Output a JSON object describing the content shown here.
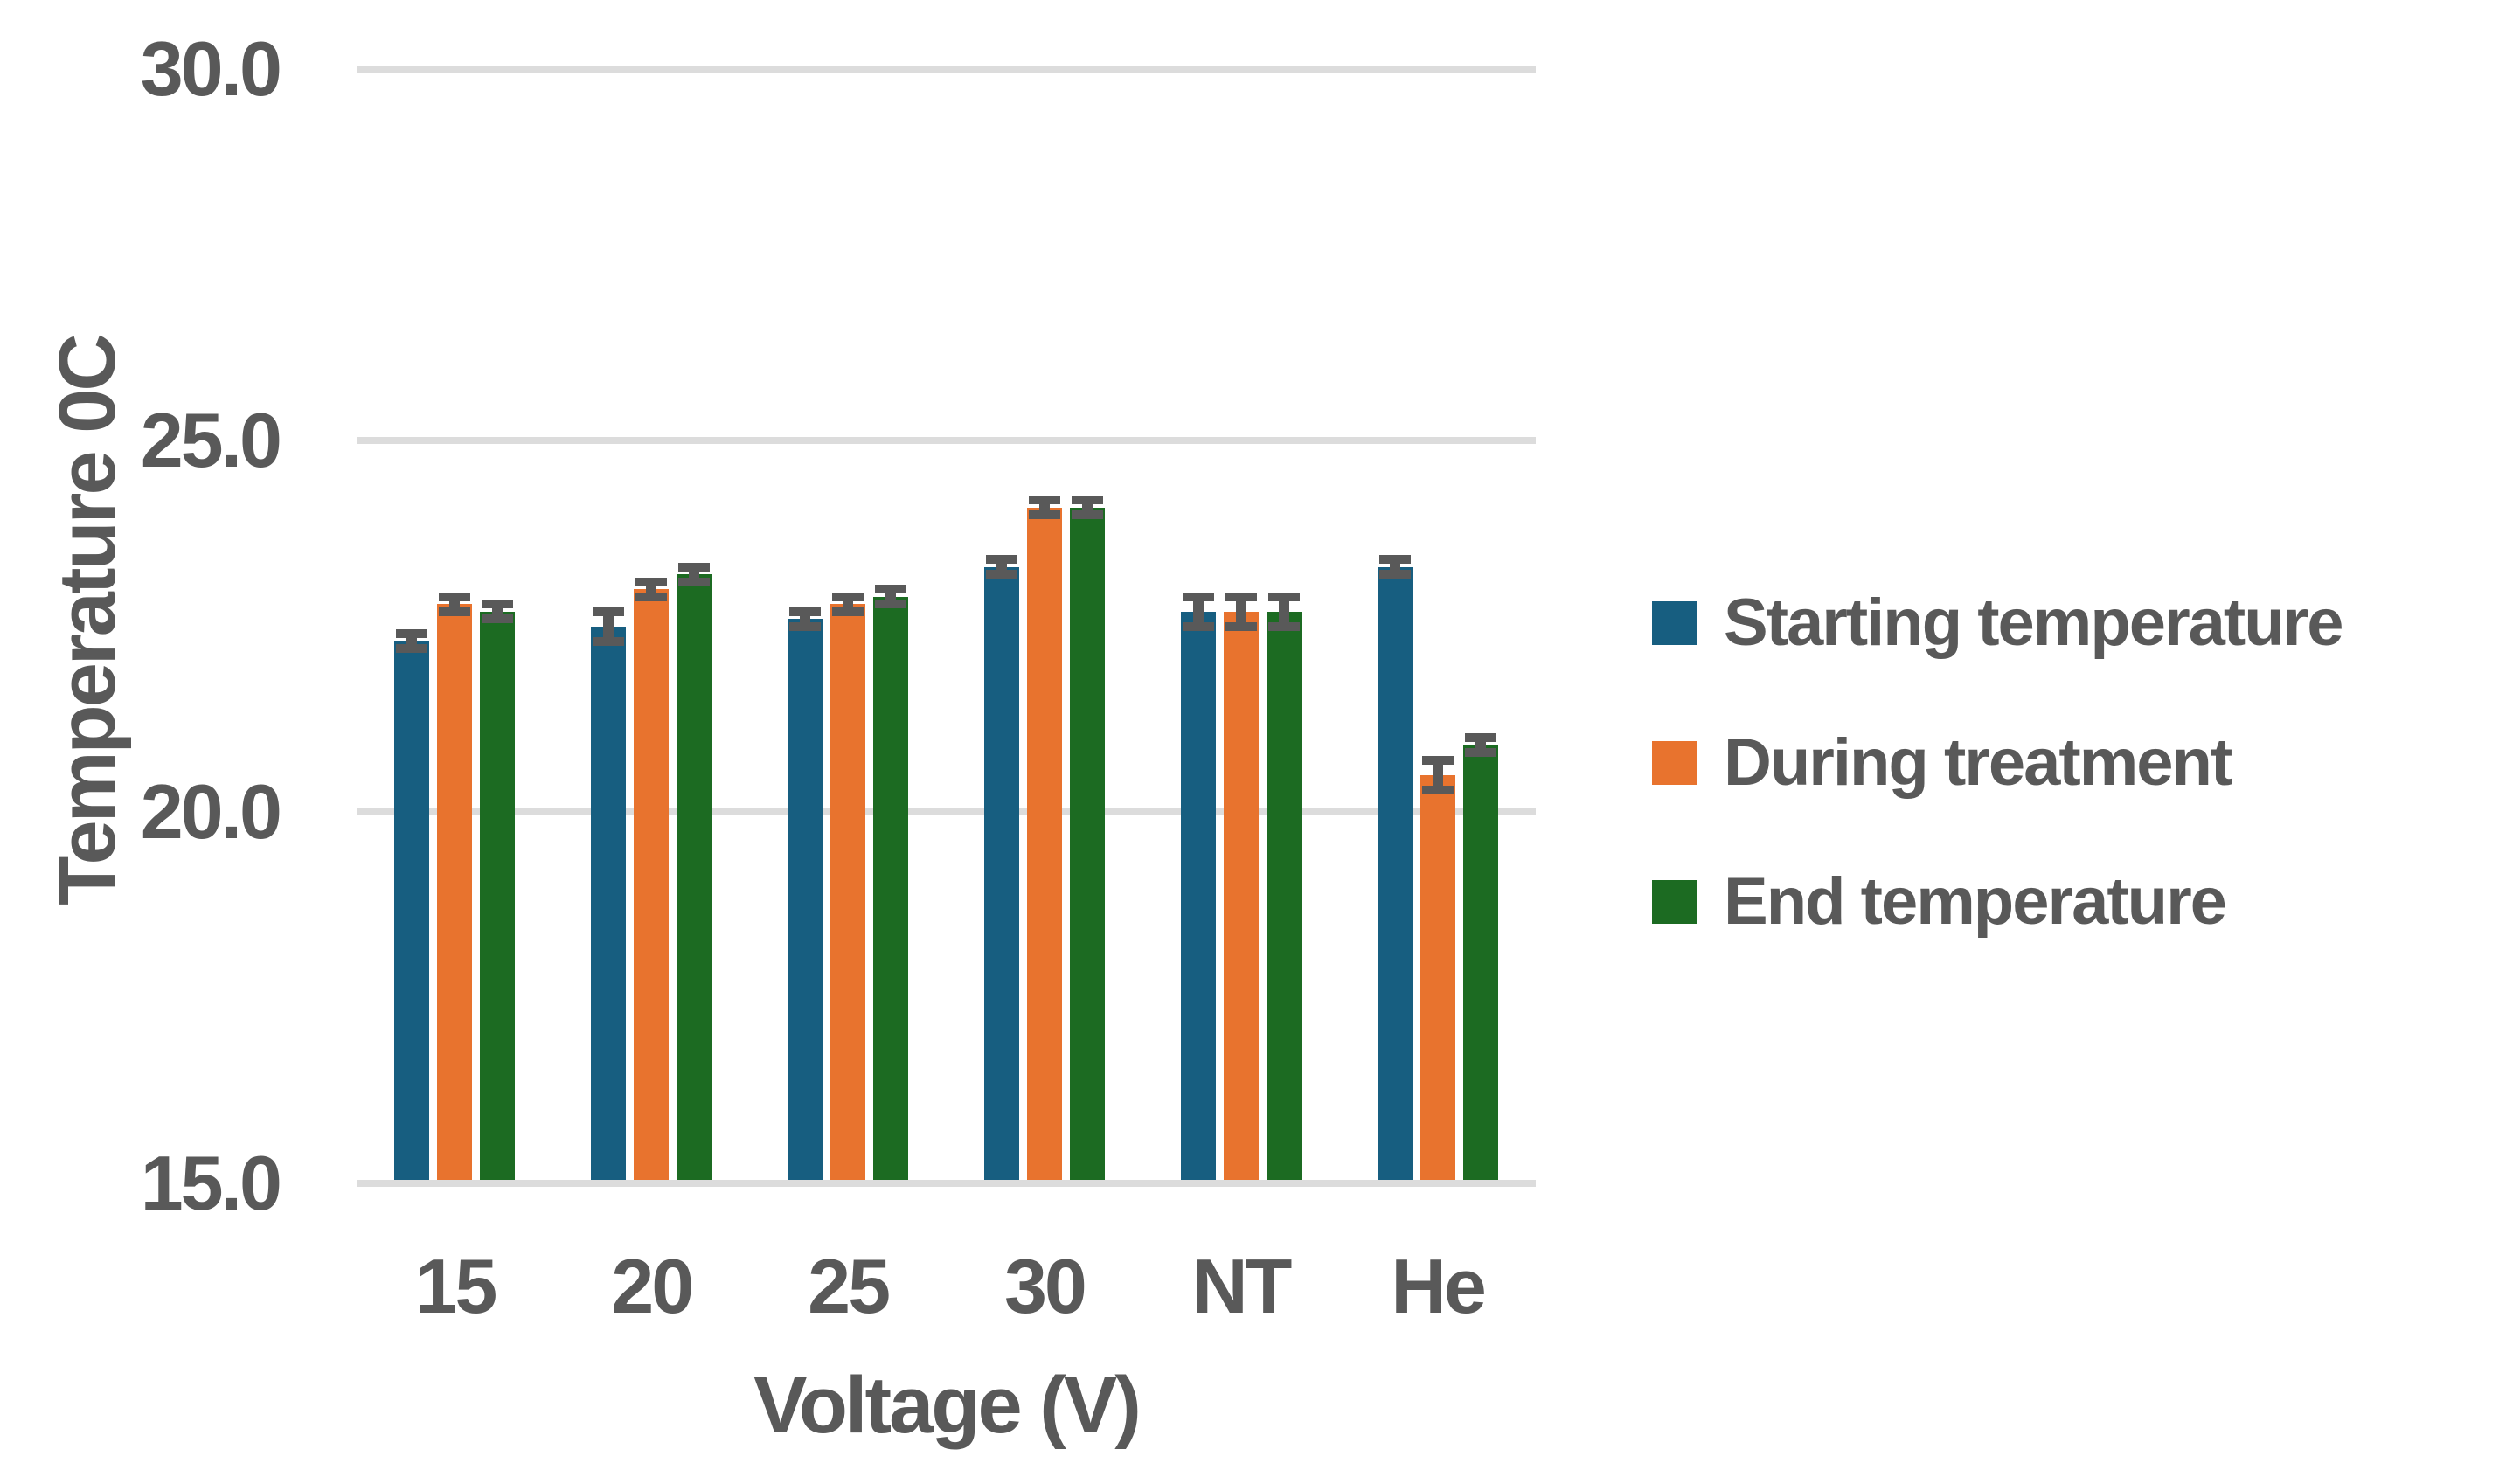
{
  "chart_data": {
    "type": "bar",
    "title": "",
    "categories": [
      "15",
      "20",
      "25",
      "30",
      "NT",
      "He"
    ],
    "series": [
      {
        "name": "Starting temperature",
        "color": "#175E80",
        "values": [
          22.3,
          22.5,
          22.6,
          23.3,
          22.7,
          23.3
        ],
        "errors": [
          0.1,
          0.2,
          0.1,
          0.1,
          0.2,
          0.1
        ]
      },
      {
        "name": "During treatment",
        "color": "#E8732E",
        "values": [
          22.8,
          23.0,
          22.8,
          24.1,
          22.7,
          20.5
        ],
        "errors": [
          0.1,
          0.1,
          0.1,
          0.1,
          0.2,
          0.2
        ]
      },
      {
        "name": "End temperature",
        "color": "#1C6B22",
        "values": [
          22.7,
          23.2,
          22.9,
          24.1,
          22.7,
          20.9
        ],
        "errors": [
          0.1,
          0.1,
          0.1,
          0.1,
          0.2,
          0.1
        ]
      }
    ],
    "xlabel": "Voltage (V)",
    "ylabel": "Temperature 0C",
    "ylim": [
      15.0,
      30.0
    ],
    "yticks": [
      30.0,
      25.0,
      20.0,
      15.0
    ],
    "ytick_labels": [
      "30.0",
      "25.0",
      "20.0",
      "15.0"
    ],
    "grid": "horizontal",
    "error_bars": true,
    "legend_position": "right"
  },
  "styles": {
    "gridline_color": "#dcdcdc",
    "text_color": "#595959",
    "error_bar_color": "#595959",
    "background": "#ffffff"
  }
}
